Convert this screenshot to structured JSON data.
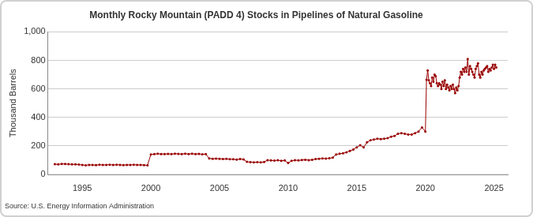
{
  "chart_data": {
    "type": "scatter",
    "title": "Monthly Rocky Mountain (PADD 4) Stocks in Pipelines of Natural Gasoline",
    "y_label": "Thousand Barrels",
    "source": "Source: U.S. Energy Information Administration",
    "color": "#990000",
    "marker": "circle",
    "line_style": "solid",
    "grid": true,
    "xlim": [
      1992.5,
      2026
    ],
    "xticks": [
      1995,
      2000,
      2005,
      2010,
      2015,
      2020,
      2025
    ],
    "ylim": [
      0,
      1000
    ],
    "yticks": [
      0,
      200,
      400,
      600,
      800,
      {
        "value": 1000,
        "label": "1,000"
      }
    ],
    "x": [
      1993,
      1993.25,
      1993.5,
      1993.75,
      1994,
      1994.25,
      1994.5,
      1994.75,
      1995,
      1995.25,
      1995.5,
      1995.75,
      1996,
      1996.25,
      1996.5,
      1996.75,
      1997,
      1997.25,
      1997.5,
      1997.75,
      1998,
      1998.25,
      1998.5,
      1998.75,
      1999,
      1999.25,
      1999.5,
      1999.75,
      2000,
      2000.25,
      2000.5,
      2000.75,
      2001,
      2001.25,
      2001.5,
      2001.75,
      2002,
      2002.25,
      2002.5,
      2002.75,
      2003,
      2003.25,
      2003.5,
      2003.75,
      2004,
      2004.25,
      2004.5,
      2004.75,
      2005,
      2005.25,
      2005.5,
      2005.75,
      2006,
      2006.25,
      2006.5,
      2006.75,
      2007,
      2007.25,
      2007.5,
      2007.75,
      2008,
      2008.25,
      2008.5,
      2008.75,
      2009,
      2009.25,
      2009.5,
      2009.75,
      2010,
      2010.25,
      2010.5,
      2010.75,
      2011,
      2011.25,
      2011.5,
      2011.75,
      2012,
      2012.25,
      2012.5,
      2012.75,
      2013,
      2013.25,
      2013.5,
      2013.75,
      2014,
      2014.25,
      2014.5,
      2014.75,
      2015,
      2015.25,
      2015.5,
      2015.75,
      2016,
      2016.25,
      2016.5,
      2016.75,
      2017,
      2017.25,
      2017.5,
      2017.75,
      2018,
      2018.25,
      2018.5,
      2018.75,
      2019,
      2019.25,
      2019.5,
      2019.75,
      2020,
      2020.083,
      2020.167,
      2020.25,
      2020.333,
      2020.417,
      2020.5,
      2020.583,
      2020.667,
      2020.75,
      2020.833,
      2020.917,
      2021,
      2021.083,
      2021.167,
      2021.25,
      2021.333,
      2021.417,
      2021.5,
      2021.583,
      2021.667,
      2021.75,
      2021.833,
      2021.917,
      2022,
      2022.083,
      2022.167,
      2022.25,
      2022.333,
      2022.417,
      2022.5,
      2022.583,
      2022.667,
      2022.75,
      2022.833,
      2022.917,
      2023,
      2023.083,
      2023.167,
      2023.25,
      2023.333,
      2023.417,
      2023.5,
      2023.583,
      2023.667,
      2023.75,
      2023.833,
      2023.917,
      2024,
      2024.083,
      2024.167,
      2024.25,
      2024.333,
      2024.417,
      2024.5,
      2024.583,
      2024.667,
      2024.75,
      2024.833,
      2024.917,
      2025,
      2025.083,
      2025.167
    ],
    "values": [
      72,
      70,
      74,
      73,
      72,
      70,
      71,
      69,
      66,
      64,
      67,
      66,
      65,
      68,
      66,
      67,
      68,
      66,
      68,
      67,
      65,
      67,
      66,
      68,
      66,
      67,
      65,
      64,
      140,
      142,
      145,
      143,
      143,
      144,
      142,
      145,
      144,
      142,
      146,
      143,
      145,
      143,
      144,
      141,
      142,
      112,
      110,
      111,
      110,
      108,
      109,
      107,
      106,
      104,
      108,
      105,
      88,
      86,
      85,
      86,
      85,
      87,
      100,
      98,
      97,
      99,
      96,
      98,
      80,
      95,
      100,
      98,
      101,
      103,
      100,
      102,
      108,
      110,
      112,
      111,
      113,
      118,
      140,
      145,
      148,
      155,
      165,
      175,
      190,
      205,
      190,
      225,
      240,
      245,
      250,
      248,
      250,
      255,
      265,
      270,
      285,
      290,
      285,
      280,
      280,
      290,
      300,
      330,
      300,
      665,
      730,
      660,
      640,
      620,
      680,
      650,
      700,
      690,
      640,
      620,
      640,
      630,
      600,
      650,
      620,
      660,
      600,
      630,
      610,
      590,
      620,
      600,
      630,
      600,
      570,
      610,
      590,
      620,
      680,
      720,
      700,
      740,
      720,
      750,
      720,
      810,
      700,
      760,
      740,
      720,
      700,
      680,
      740,
      760,
      780,
      700,
      680,
      720,
      700,
      730,
      740,
      750,
      760,
      720,
      740,
      730,
      750,
      770,
      740,
      770,
      750
    ]
  }
}
